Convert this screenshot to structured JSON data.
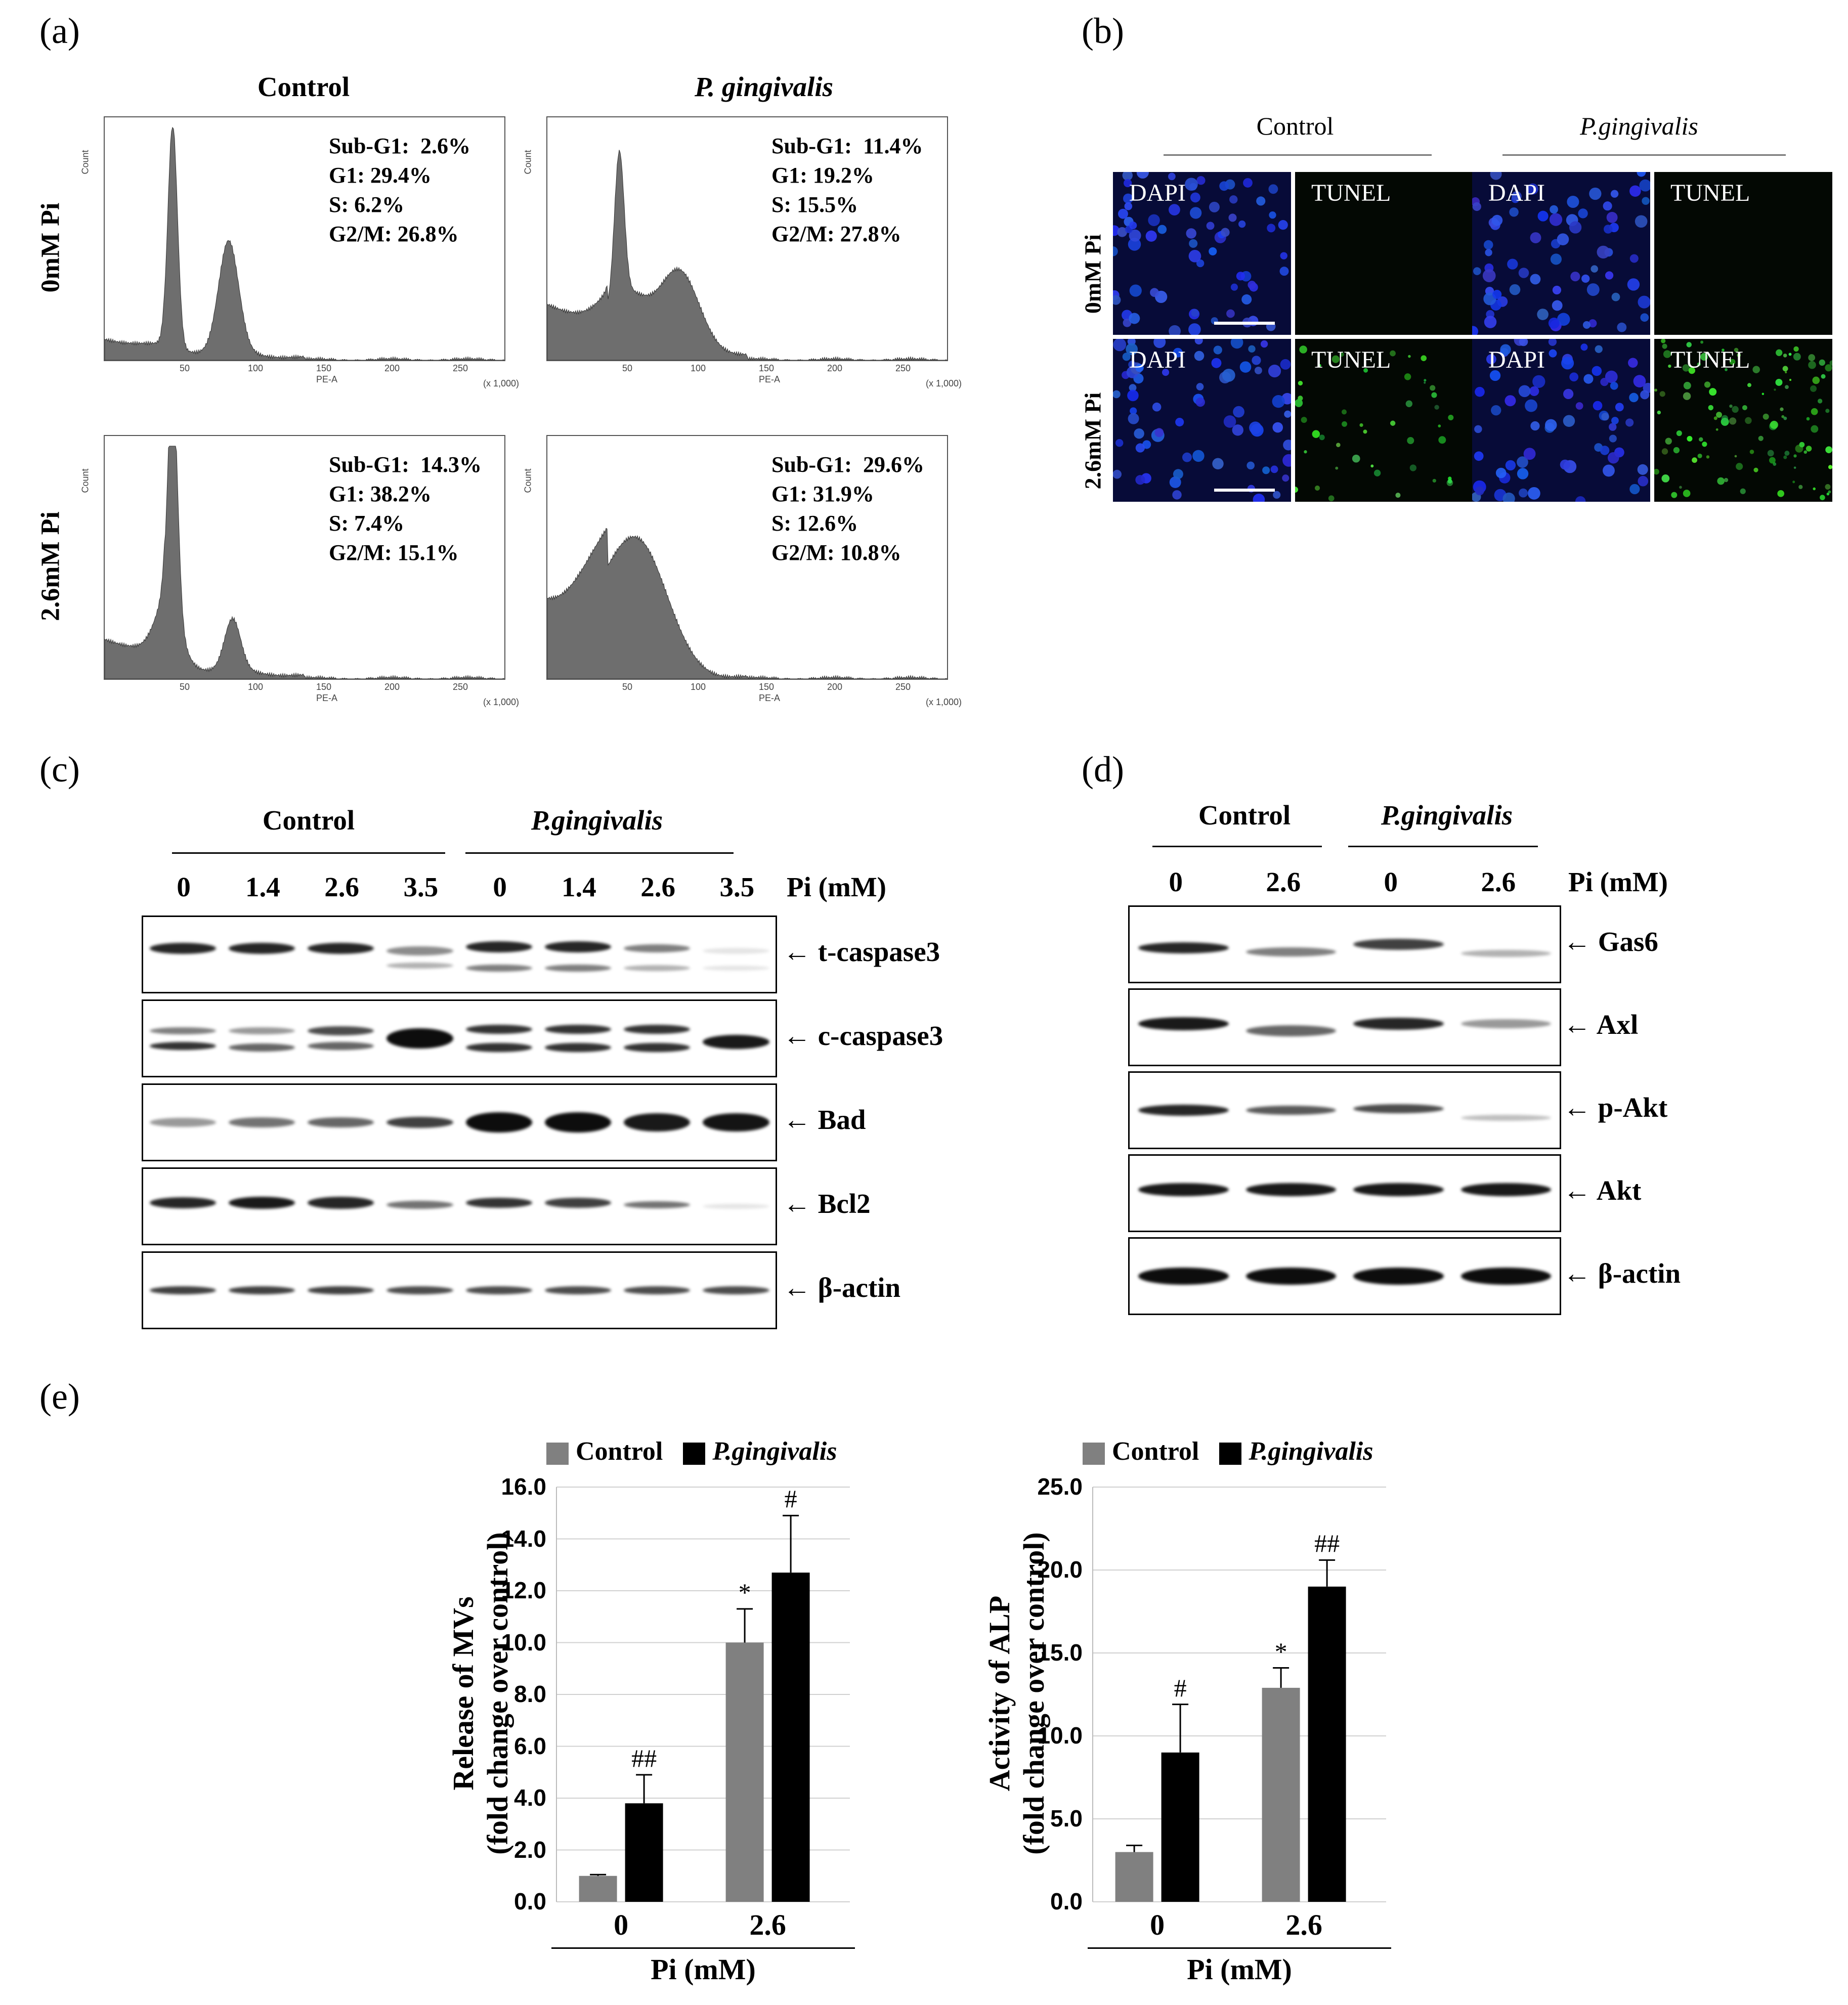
{
  "panels": {
    "a": "(a)",
    "b": "(b)",
    "c": "(c)",
    "d": "(d)",
    "e": "(e)"
  },
  "a": {
    "col_titles": [
      "Control",
      "P. gingivalis"
    ],
    "row_titles": [
      "0mM Pi",
      "2.6mM Pi"
    ],
    "stats": [
      [
        "Sub-G1:  2.6%",
        "G1: 29.4%",
        "S: 6.2%",
        "G2/M: 26.8%"
      ],
      [
        "Sub-G1:  11.4%",
        "G1: 19.2%",
        "S: 15.5%",
        "G2/M: 27.8%"
      ],
      [
        "Sub-G1:  14.3%",
        "G1: 38.2%",
        "S: 7.4%",
        "G2/M: 15.1%"
      ],
      [
        "Sub-G1:  29.6%",
        "G1: 31.9%",
        "S: 12.6%",
        "G2/M: 10.8%"
      ]
    ],
    "x_axis_label": "PE-A",
    "y_axis_label": "Count",
    "x_ticks": [
      "50",
      "100",
      "150",
      "200",
      "250"
    ],
    "x_unit": "(x 1,000)"
  },
  "b": {
    "col_titles": [
      "Control",
      "P.gingivalis"
    ],
    "row_titles": [
      "0mM Pi",
      "2.6mM Pi"
    ],
    "stain_labels": [
      "DAPI",
      "TUNEL",
      "DAPI",
      "TUNEL"
    ]
  },
  "c": {
    "groups": [
      "Control",
      "P.gingivalis"
    ],
    "lanes": [
      "0",
      "1.4",
      "2.6",
      "3.5",
      "0",
      "1.4",
      "2.6",
      "3.5"
    ],
    "unit": "Pi (mM)",
    "proteins": [
      "t-caspase3",
      "c-caspase3",
      "Bad",
      "Bcl2",
      "β-actin"
    ]
  },
  "d": {
    "groups": [
      "Control",
      "P.gingivalis"
    ],
    "lanes": [
      "0",
      "2.6",
      "0",
      "2.6"
    ],
    "unit": "Pi (mM)",
    "proteins": [
      "Gas6",
      "Axl",
      "p-Akt",
      "Akt",
      "β-actin"
    ]
  },
  "chart_data": [
    {
      "type": "bar",
      "categories": [
        "0",
        "2.6"
      ],
      "series": [
        {
          "name": "Control",
          "values": [
            1.0,
            10.0
          ],
          "errors": [
            0.05,
            1.3
          ],
          "color": "#808080"
        },
        {
          "name": "P.gingivalis",
          "values": [
            3.8,
            12.7
          ],
          "errors": [
            1.1,
            2.2
          ],
          "color": "#000000"
        }
      ],
      "significance": [
        [
          "",
          "*"
        ],
        [
          "##",
          "#"
        ]
      ],
      "ylabel": [
        "Release of MVs",
        "(fold change over control)"
      ],
      "xlabel": "Pi (mM)",
      "ylim": [
        0,
        16
      ],
      "yticks": [
        "0.0",
        "2.0",
        "4.0",
        "6.0",
        "8.0",
        "10.0",
        "12.0",
        "14.0",
        "16.0"
      ],
      "grid": true,
      "legend": "top"
    },
    {
      "type": "bar",
      "categories": [
        "0",
        "2.6"
      ],
      "series": [
        {
          "name": "Control",
          "values": [
            3.0,
            12.9
          ],
          "errors": [
            0.4,
            1.2
          ],
          "color": "#808080"
        },
        {
          "name": "P.gingivalis",
          "values": [
            9.0,
            19.0
          ],
          "errors": [
            2.9,
            1.6
          ],
          "color": "#000000"
        }
      ],
      "significance": [
        [
          "",
          "*"
        ],
        [
          "#",
          "##"
        ]
      ],
      "ylabel": [
        "Activity of  ALP",
        "(fold change over control)"
      ],
      "xlabel": "Pi (mM)",
      "ylim": [
        0,
        25
      ],
      "yticks": [
        "0.0",
        "5.0",
        "10.0",
        "15.0",
        "20.0",
        "25.0"
      ],
      "grid": true,
      "legend": "top"
    }
  ]
}
